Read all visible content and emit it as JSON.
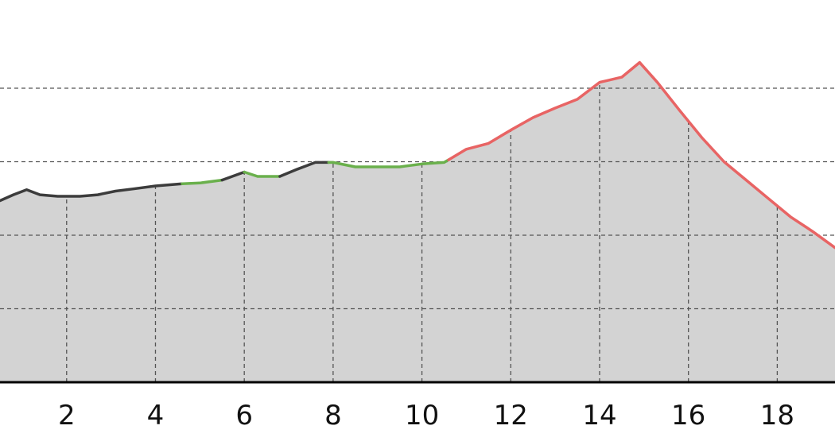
{
  "chart_data": {
    "type": "area",
    "title": "",
    "xlabel": "",
    "ylabel": "",
    "xlim": [
      0.5,
      19.3
    ],
    "ylim": [
      0,
      5.2
    ],
    "x_ticks": [
      "2",
      "4",
      "6",
      "8",
      "10",
      "12",
      "14",
      "16",
      "18"
    ],
    "x_tick_values": [
      2,
      4,
      6,
      8,
      10,
      12,
      14,
      16,
      18
    ],
    "y_gridlines": [
      1,
      2,
      3,
      4
    ],
    "grid": true,
    "fill_color": "#d3d3d3",
    "profile": [
      [
        0.5,
        2.47
      ],
      [
        0.8,
        2.55
      ],
      [
        1.1,
        2.62
      ],
      [
        1.4,
        2.55
      ],
      [
        1.8,
        2.53
      ],
      [
        2.3,
        2.53
      ],
      [
        2.7,
        2.55
      ],
      [
        3.1,
        2.6
      ],
      [
        3.5,
        2.63
      ],
      [
        4.0,
        2.67
      ],
      [
        4.6,
        2.7
      ],
      [
        5.0,
        2.71
      ],
      [
        5.5,
        2.75
      ],
      [
        6.0,
        2.86
      ],
      [
        6.3,
        2.8
      ],
      [
        6.8,
        2.8
      ],
      [
        7.2,
        2.9
      ],
      [
        7.6,
        2.99
      ],
      [
        8.0,
        2.99
      ],
      [
        8.5,
        2.93
      ],
      [
        9.0,
        2.93
      ],
      [
        9.5,
        2.93
      ],
      [
        10.0,
        2.97
      ],
      [
        10.5,
        2.99
      ],
      [
        11.0,
        3.17
      ],
      [
        11.5,
        3.25
      ],
      [
        12.0,
        3.43
      ],
      [
        12.5,
        3.6
      ],
      [
        13.0,
        3.73
      ],
      [
        13.5,
        3.85
      ],
      [
        14.0,
        4.08
      ],
      [
        14.5,
        4.15
      ],
      [
        14.9,
        4.35
      ],
      [
        15.3,
        4.08
      ],
      [
        15.8,
        3.7
      ],
      [
        16.3,
        3.33
      ],
      [
        16.8,
        3.0
      ],
      [
        17.3,
        2.75
      ],
      [
        17.8,
        2.5
      ],
      [
        18.3,
        2.25
      ],
      [
        18.8,
        2.05
      ],
      [
        19.3,
        1.83
      ]
    ],
    "series": [
      {
        "color": "#3c3c3c",
        "x_range": [
          0.5,
          4.6
        ]
      },
      {
        "color": "#6ab04c",
        "x_range": [
          4.6,
          5.5
        ]
      },
      {
        "color": "#3c3c3c",
        "x_range": [
          5.5,
          6.0
        ]
      },
      {
        "color": "#6ab04c",
        "x_range": [
          6.0,
          6.8
        ]
      },
      {
        "color": "#3c3c3c",
        "x_range": [
          6.8,
          7.9
        ]
      },
      {
        "color": "#6ab04c",
        "x_range": [
          7.9,
          10.6
        ]
      },
      {
        "color": "#e86464",
        "x_range": [
          10.6,
          19.3
        ]
      }
    ]
  }
}
